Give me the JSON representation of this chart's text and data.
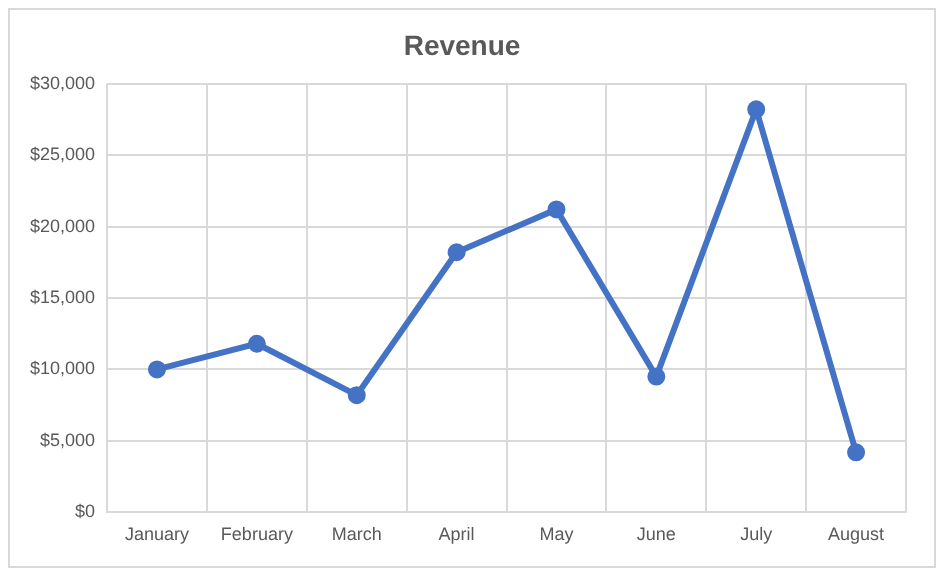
{
  "chart_data": {
    "type": "line",
    "title": "Revenue",
    "categories": [
      "January",
      "February",
      "March",
      "April",
      "May",
      "June",
      "July",
      "August"
    ],
    "series": [
      {
        "color": "#4472c4",
        "values": [
          10000,
          11800,
          8200,
          18200,
          21200,
          9500,
          28200,
          4200
        ]
      }
    ],
    "ylim": [
      0,
      30000
    ],
    "yticks": [
      {
        "value": 0,
        "label": "$0"
      },
      {
        "value": 5000,
        "label": "$5,000"
      },
      {
        "value": 10000,
        "label": "$10,000"
      },
      {
        "value": 15000,
        "label": "$15,000"
      },
      {
        "value": 20000,
        "label": "$20,000"
      },
      {
        "value": 25000,
        "label": "$25,000"
      },
      {
        "value": 30000,
        "label": "$30,000"
      }
    ],
    "grid": true,
    "legend": false,
    "marker": "circle",
    "line_style": "solid"
  }
}
